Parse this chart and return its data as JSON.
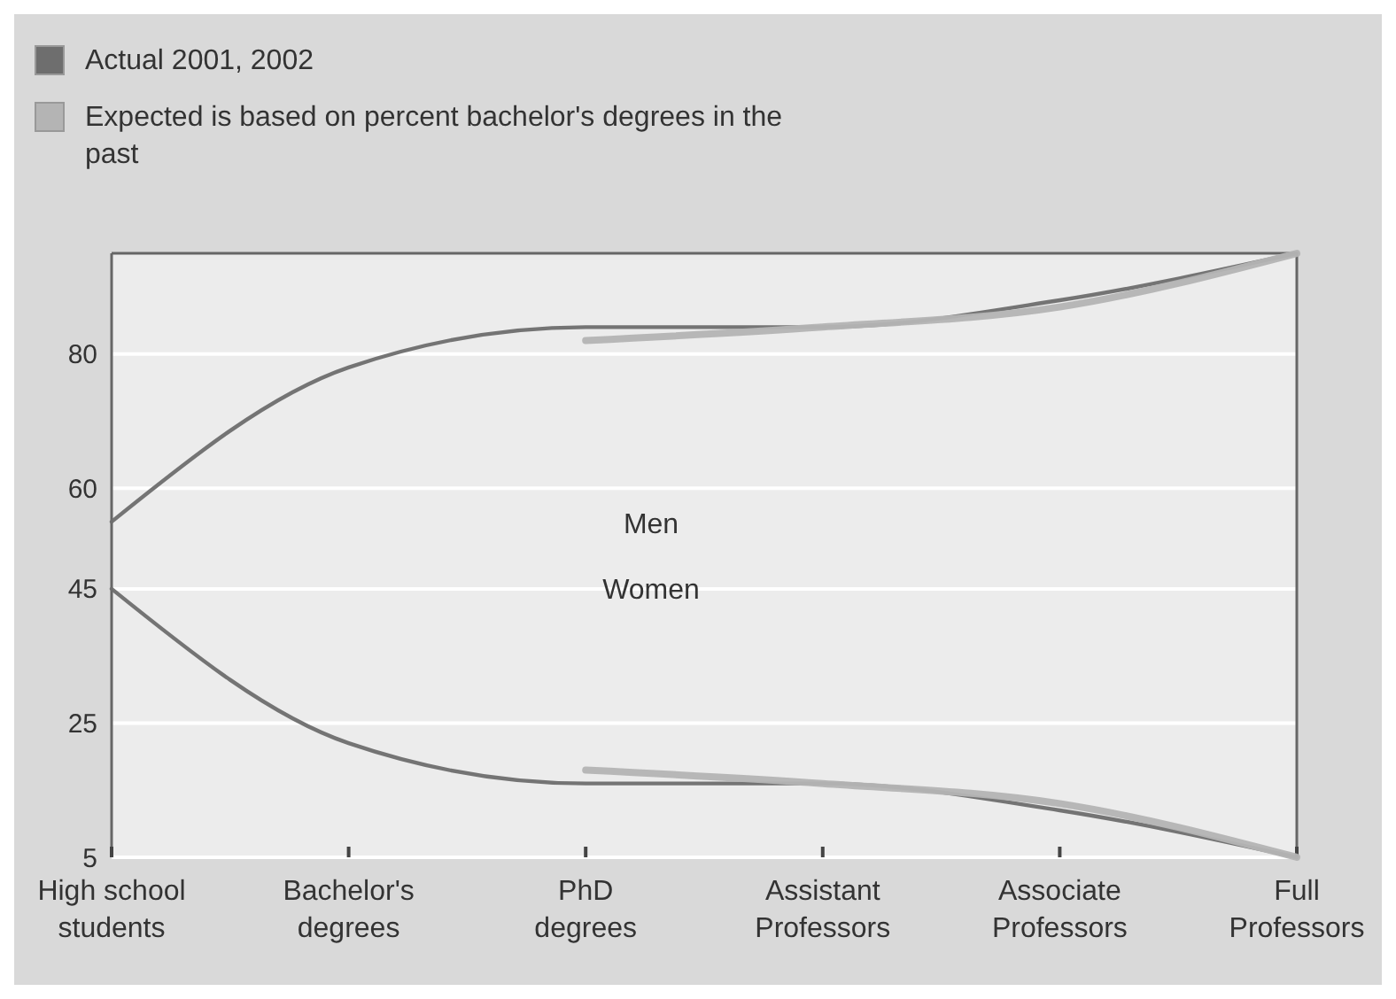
{
  "chart_data": {
    "type": "line",
    "categories": [
      "High school students",
      "Bachelor's degrees",
      "PhD degrees",
      "Assistant Professors",
      "Associate Professors",
      "Full Professors"
    ],
    "series": [
      {
        "name": "Actual 2001, 2002",
        "color": "#6e6e6e",
        "values": [
          55,
          78,
          84,
          84,
          88,
          95
        ]
      },
      {
        "color": "#6e6e6e",
        "values": [
          45,
          22,
          16,
          16,
          12,
          5
        ]
      },
      {
        "name": "Expected is based on percent bachelor's degrees in the past",
        "color": "#b4b4b4",
        "values": [
          null,
          null,
          82,
          84,
          87,
          95
        ]
      },
      {
        "color": "#b4b4b4",
        "values": [
          null,
          null,
          18,
          16,
          13,
          5
        ]
      }
    ],
    "ylim": [
      5,
      95
    ],
    "yticks": [
      5,
      25,
      45,
      60,
      80
    ],
    "grid": "y",
    "legend": "top left",
    "marker": "none",
    "line_style": "solid",
    "annotations": [
      "Men",
      "Women"
    ]
  }
}
